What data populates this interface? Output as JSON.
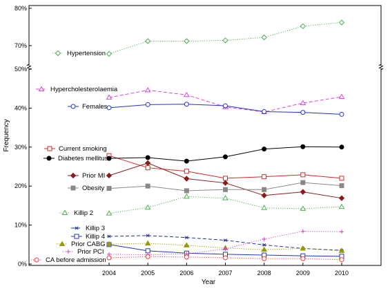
{
  "chart_data": {
    "type": "line",
    "xlabel": "Year",
    "ylabel": "Frequency",
    "x": [
      2004,
      2005,
      2006,
      2007,
      2008,
      2009,
      2010
    ],
    "x_tick_labels": [
      "2004",
      "2005",
      "2006",
      "2007",
      "2008",
      "2009",
      "2010"
    ],
    "upper_panel": {
      "ylim": [
        65,
        80
      ],
      "ticks": [
        70,
        80
      ],
      "tick_labels": [
        "70%",
        "80%"
      ]
    },
    "lower_panel": {
      "ylim": [
        0,
        50
      ],
      "ticks": [
        0,
        10,
        20,
        30,
        40,
        50
      ],
      "tick_labels": [
        "0%",
        "10%",
        "20%",
        "30%",
        "40%",
        "50%"
      ]
    },
    "grid": false,
    "series": [
      {
        "name": "Hypertension",
        "panel": "upper",
        "color": "#4caf50",
        "dash": "dotted",
        "marker": "diamond",
        "values": [
          67.8,
          71.2,
          71.2,
          71.4,
          72.2,
          75.2,
          76.2
        ]
      },
      {
        "name": "Hypercholesterolaemia",
        "panel": "lower",
        "color": "#e040e0",
        "dash": "dashed",
        "marker": "triangle",
        "values": [
          42.7,
          44.6,
          43.4,
          40.3,
          39.0,
          41.3,
          42.9
        ]
      },
      {
        "name": "Females",
        "panel": "lower",
        "color": "#2233cc",
        "dash": "solid",
        "marker": "circle",
        "values": [
          40.1,
          40.9,
          41.0,
          40.6,
          39.1,
          38.9,
          38.4
        ]
      },
      {
        "name": "Current smoking",
        "panel": "lower",
        "color": "#dd2222",
        "dash": "solid",
        "marker": "square",
        "values": [
          27.8,
          24.7,
          23.8,
          22.0,
          22.4,
          22.9,
          22.0
        ]
      },
      {
        "name": "Diabetes mellitus",
        "panel": "lower",
        "color": "#000000",
        "dash": "solid",
        "marker": "filled-circle",
        "values": [
          27.1,
          27.3,
          26.4,
          27.5,
          29.5,
          30.1,
          30.0
        ]
      },
      {
        "name": "Prior MI",
        "panel": "lower",
        "color": "#8b1a1a",
        "dash": "solid",
        "marker": "filled-diamond",
        "values": [
          22.7,
          25.9,
          21.9,
          20.8,
          17.6,
          18.5,
          16.9
        ]
      },
      {
        "name": "Obesity",
        "panel": "lower",
        "color": "#888888",
        "dash": "solid",
        "marker": "filled-square",
        "values": [
          19.4,
          20.0,
          18.8,
          19.1,
          19.1,
          20.9,
          20.1
        ]
      },
      {
        "name": "Killip 2",
        "panel": "lower",
        "color": "#4caf50",
        "dash": "dotted",
        "marker": "triangle",
        "values": [
          13.0,
          14.5,
          17.3,
          16.9,
          14.4,
          14.2,
          14.7
        ]
      },
      {
        "name": "Killip 3",
        "panel": "lower",
        "color": "#223399",
        "dash": "dashed",
        "marker": "asterisk",
        "values": [
          7.1,
          7.3,
          6.8,
          6.1,
          4.9,
          4.0,
          3.5
        ]
      },
      {
        "name": "Killip 4",
        "panel": "lower",
        "color": "#2233cc",
        "dash": "solid",
        "marker": "square",
        "values": [
          5.0,
          3.4,
          2.8,
          2.5,
          2.3,
          2.1,
          2.0
        ]
      },
      {
        "name": "Prior CABG",
        "panel": "lower",
        "color": "#999900",
        "dash": "dotted",
        "marker": "filled-triangle",
        "values": [
          5.1,
          5.3,
          4.8,
          4.1,
          3.7,
          4.0,
          3.4
        ]
      },
      {
        "name": "Prior PCI",
        "panel": "lower",
        "color": "#cc44cc",
        "dash": "dotted",
        "marker": "plus",
        "values": [
          2.5,
          2.4,
          2.6,
          3.9,
          6.4,
          8.4,
          8.3
        ]
      },
      {
        "name": "CA before admission",
        "panel": "lower",
        "color": "#ff3333",
        "dash": "dotted",
        "marker": "circle",
        "values": [
          1.6,
          1.9,
          1.8,
          1.6,
          1.4,
          1.4,
          1.1
        ]
      }
    ]
  }
}
